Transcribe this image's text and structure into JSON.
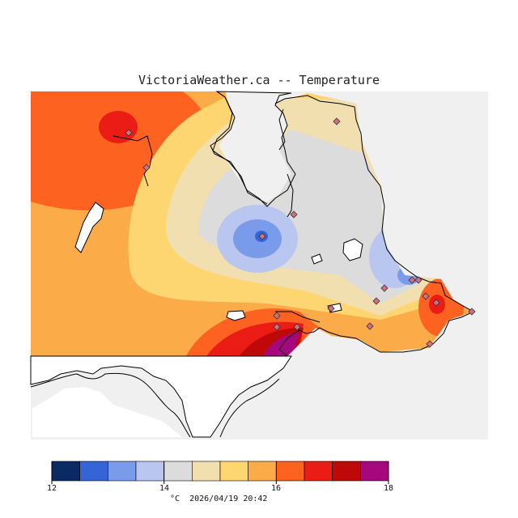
{
  "map": {
    "title": "VictoriaWeather.ca -- Temperature",
    "variable": "Temperature",
    "units": "°C",
    "timestamp": "2026/04/19 20:42"
  },
  "legend": {
    "min": 12,
    "max": 18,
    "step": 0.5,
    "tick_labels": [
      "12",
      "14",
      "16",
      "18"
    ],
    "unit_label": "°C",
    "colors": [
      "#0b2a64",
      "#3564d6",
      "#7a9be9",
      "#b9c6ef",
      "#dcdcdc",
      "#f1dfb0",
      "#fdd571",
      "#fbab48",
      "#fd6221",
      "#eb1c16",
      "#bf0808",
      "#a6077e"
    ]
  },
  "colors": {
    "land_bg": "#f0f0f0",
    "water": "#ffffff",
    "coastline": "#000000",
    "station_marker": "#d07080"
  }
}
